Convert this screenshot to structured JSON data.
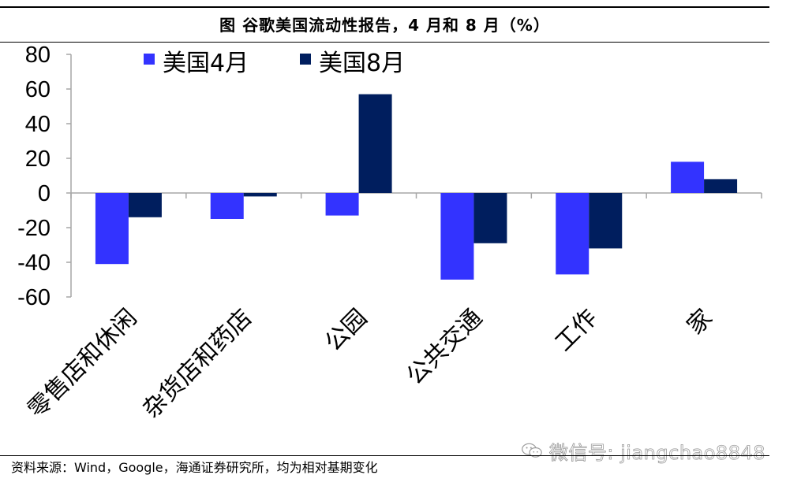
{
  "figure": {
    "title": "图  谷歌美国流动性报告，4 月和 8 月（%）",
    "source": "资料来源：Wind，Google，海通证券研究所，均为相对基期变化",
    "watermark": "微信号: jiangchao8848"
  },
  "colors": {
    "april": "#3333ff",
    "august": "#001e5e",
    "axis": "#a6a6a6"
  },
  "chart_data": {
    "type": "bar",
    "title": "谷歌美国流动性报告，4 月和 8 月（%）",
    "xlabel": "",
    "ylabel": "",
    "ylim": [
      -60,
      80
    ],
    "yticks": [
      80,
      60,
      40,
      20,
      0,
      -20,
      -40,
      -60
    ],
    "ytick_labels": [
      "80",
      "60",
      "40",
      "20",
      "0",
      "-20",
      "-40",
      "-60"
    ],
    "legend_position": "top",
    "grid": false,
    "categories": [
      "零售店和休闲",
      "杂货店和药店",
      "公园",
      "公共交通",
      "工作",
      "家"
    ],
    "series": [
      {
        "name": "美国4月",
        "values": [
          -41,
          -15,
          -13,
          -50,
          -47,
          18
        ]
      },
      {
        "name": "美国8月",
        "values": [
          -14,
          -2,
          57,
          -29,
          -32,
          8
        ]
      }
    ]
  }
}
